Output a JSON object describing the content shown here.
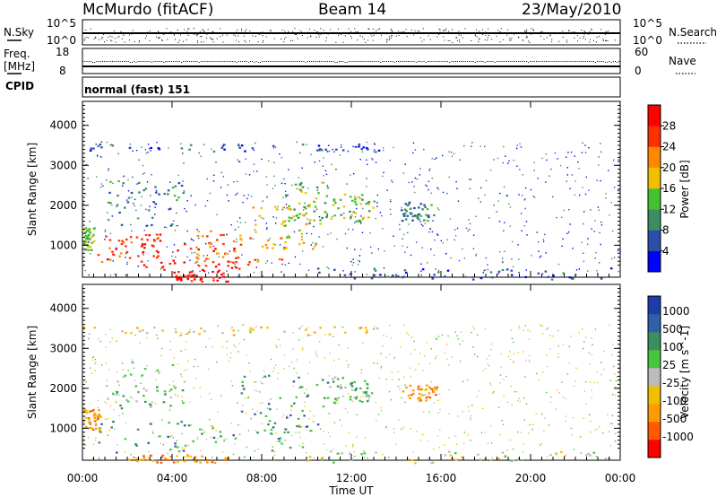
{
  "header": {
    "station": "McMurdo (fitACF)",
    "beam": "Beam 14",
    "date": "23/May/2010"
  },
  "top_panels": {
    "nsky_label": "N.Sky",
    "nsearch_label": "N.Search",
    "nsky_ticks": [
      "10^5",
      "10^0"
    ],
    "nsearch_ticks": [
      "10^5",
      "10^0"
    ],
    "freq_label_line1": "Freq.",
    "freq_label_line2": "[MHz]",
    "freq_ticks": [
      "18",
      "8"
    ],
    "nave_label": "Nave",
    "nave_ticks": [
      "60",
      "0"
    ],
    "cpid_label": "CPID",
    "cpid_value": "normal (fast) 151"
  },
  "x_axis": {
    "title": "Time UT",
    "ticks": [
      "00:00",
      "04:00",
      "08:00",
      "12:00",
      "16:00",
      "20:00",
      "00:00"
    ]
  },
  "colors": {
    "power": [
      "#0000ff",
      "#2b4fa8",
      "#3c8c64",
      "#45c030",
      "#f0c000",
      "#ff8800",
      "#ff3000",
      "#ff0000"
    ],
    "velocity": [
      "#ff0000",
      "#ff5a00",
      "#ff9a00",
      "#f0c000",
      "#bcbcbc",
      "#46c63c",
      "#3a8f5c",
      "#3060a8",
      "#1e3ca8"
    ]
  },
  "chart_data": [
    {
      "type": "heatmap",
      "name": "power",
      "ylabel": "Slant Range [km]",
      "y_ticks": [
        1000,
        2000,
        3000,
        4000
      ],
      "ylim": [
        200,
        4600
      ],
      "xlim": [
        0,
        24
      ],
      "colorbar": {
        "label": "Power [dB]",
        "ticks": [
          "4",
          "8",
          "12",
          "16",
          "20",
          "24",
          "28"
        ],
        "range": [
          0,
          32
        ]
      },
      "regions": [
        {
          "t0": 0.0,
          "t1": 0.5,
          "r0": 900,
          "r1": 1500,
          "level": 3
        },
        {
          "t0": 0.5,
          "t1": 3.5,
          "r0": 600,
          "r1": 1300,
          "level": 6
        },
        {
          "t0": 2.5,
          "t1": 7.0,
          "r0": 400,
          "r1": 1100,
          "level": 7
        },
        {
          "t0": 5.0,
          "t1": 9.0,
          "r0": 500,
          "r1": 1400,
          "level": 5
        },
        {
          "t0": 7.5,
          "t1": 10.5,
          "r0": 900,
          "r1": 2000,
          "level": 4
        },
        {
          "t0": 9.0,
          "t1": 11.0,
          "r0": 1500,
          "r1": 2600,
          "level": 3
        },
        {
          "t0": 11.0,
          "t1": 13.0,
          "r0": 1600,
          "r1": 2300,
          "level": 3
        },
        {
          "t0": 14.2,
          "t1": 15.8,
          "r0": 1600,
          "r1": 2100,
          "level": 2
        },
        {
          "t0": 1.0,
          "t1": 4.5,
          "r0": 1500,
          "r1": 2700,
          "level": 2
        },
        {
          "t0": 4.0,
          "t1": 6.5,
          "r0": 100,
          "r1": 400,
          "level": 7
        },
        {
          "t0": 10.0,
          "t1": 24.0,
          "r0": 150,
          "r1": 450,
          "level": 1
        },
        {
          "t0": 0.0,
          "t1": 13.5,
          "r0": 3350,
          "r1": 3550,
          "level": 1
        }
      ]
    },
    {
      "type": "heatmap",
      "name": "velocity",
      "ylabel": "Slant Range [km]",
      "y_ticks": [
        1000,
        2000,
        3000,
        4000
      ],
      "ylim": [
        200,
        4600
      ],
      "xlim": [
        0,
        24
      ],
      "colorbar": {
        "label": "Velocity [m s^-1]",
        "ticks": [
          "1000",
          "500",
          "100",
          "25",
          "-25",
          "-100",
          "-500",
          "-1000"
        ],
        "range": [
          -1200,
          1200
        ]
      },
      "regions": [
        {
          "t0": 0.0,
          "t1": 0.8,
          "r0": 900,
          "r1": 1500,
          "level": 2
        },
        {
          "t0": 0.5,
          "t1": 10.0,
          "r0": 400,
          "r1": 1200,
          "level": 6
        },
        {
          "t0": 7.0,
          "t1": 11.0,
          "r0": 900,
          "r1": 2400,
          "level": 6
        },
        {
          "t0": 11.0,
          "t1": 13.0,
          "r0": 1600,
          "r1": 2300,
          "level": 5
        },
        {
          "t0": 14.2,
          "t1": 15.8,
          "r0": 1700,
          "r1": 2100,
          "level": 2
        },
        {
          "t0": 1.0,
          "t1": 4.5,
          "r0": 1500,
          "r1": 2700,
          "level": 5
        },
        {
          "t0": 2.0,
          "t1": 6.5,
          "r0": 150,
          "r1": 350,
          "level": 2
        },
        {
          "t0": 10.0,
          "t1": 24.0,
          "r0": 150,
          "r1": 450,
          "level": 4
        },
        {
          "t0": 0.0,
          "t1": 13.5,
          "r0": 3350,
          "r1": 3550,
          "level": 3
        }
      ]
    }
  ]
}
